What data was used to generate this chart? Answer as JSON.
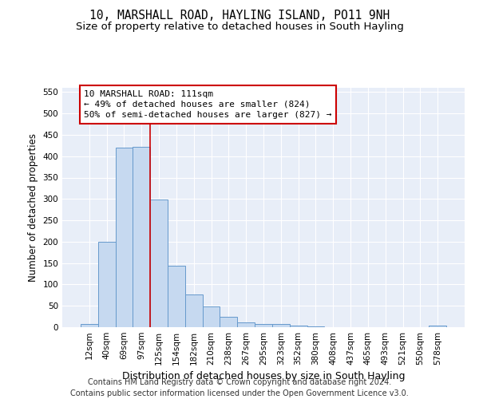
{
  "title": "10, MARSHALL ROAD, HAYLING ISLAND, PO11 9NH",
  "subtitle": "Size of property relative to detached houses in South Hayling",
  "xlabel": "Distribution of detached houses by size in South Hayling",
  "ylabel": "Number of detached properties",
  "footer_line1": "Contains HM Land Registry data © Crown copyright and database right 2024.",
  "footer_line2": "Contains public sector information licensed under the Open Government Licence v3.0.",
  "categories": [
    "12sqm",
    "40sqm",
    "69sqm",
    "97sqm",
    "125sqm",
    "154sqm",
    "182sqm",
    "210sqm",
    "238sqm",
    "267sqm",
    "295sqm",
    "323sqm",
    "352sqm",
    "380sqm",
    "408sqm",
    "437sqm",
    "465sqm",
    "493sqm",
    "521sqm",
    "550sqm",
    "578sqm"
  ],
  "values": [
    8,
    200,
    420,
    422,
    298,
    143,
    77,
    48,
    24,
    12,
    8,
    7,
    4,
    1,
    0,
    0,
    0,
    0,
    0,
    0,
    4
  ],
  "bar_color": "#c6d9f0",
  "bar_edge_color": "#6699cc",
  "bar_edge_width": 0.7,
  "annotation_line1": "10 MARSHALL ROAD: 111sqm",
  "annotation_line2": "← 49% of detached houses are smaller (824)",
  "annotation_line3": "50% of semi-detached houses are larger (827) →",
  "vline_x_index": 3.5,
  "vline_color": "#cc0000",
  "ylim": [
    0,
    560
  ],
  "yticks": [
    0,
    50,
    100,
    150,
    200,
    250,
    300,
    350,
    400,
    450,
    500,
    550
  ],
  "background_color": "#e8eef8",
  "title_fontsize": 10.5,
  "subtitle_fontsize": 9.5,
  "xlabel_fontsize": 9,
  "ylabel_fontsize": 8.5,
  "tick_fontsize": 7.5,
  "annotation_fontsize": 8,
  "footer_fontsize": 7
}
